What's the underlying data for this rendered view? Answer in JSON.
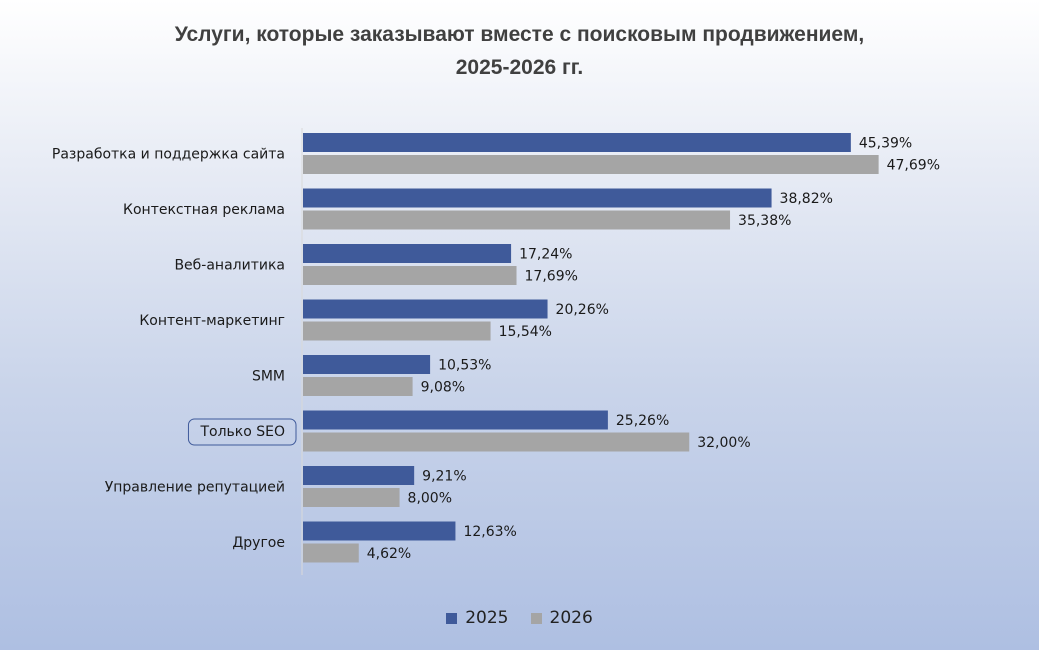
{
  "chart_data": {
    "type": "bar",
    "orientation": "horizontal",
    "title_line1": "Услуги, которые заказывают вместе с поисковым продвижением,",
    "title_line2": "2025-2026 гг.",
    "categories": [
      "Разработка и поддержка сайта",
      "Контекстная реклама",
      "Веб-аналитика",
      "Контент-маркетинг",
      "SMM",
      "Только SEO",
      "Управление репутацией",
      "Другое"
    ],
    "highlighted_category": "Только SEO",
    "series": [
      {
        "name": "2025",
        "color": "#3f5a9a",
        "values": [
          45.39,
          38.82,
          17.24,
          20.26,
          10.53,
          25.26,
          9.21,
          12.63
        ],
        "labels": [
          "45,39%",
          "38,82%",
          "17,24%",
          "20,26%",
          "10,53%",
          "25,26%",
          "9,21%",
          "12,63%"
        ]
      },
      {
        "name": "2026",
        "color": "#a5a5a5",
        "values": [
          47.69,
          35.38,
          17.69,
          15.54,
          9.08,
          32.0,
          8.0,
          4.62
        ],
        "labels": [
          "47,69%",
          "35,38%",
          "17,69%",
          "15,54%",
          "9,08%",
          "32,00%",
          "8,00%",
          "4,62%"
        ]
      }
    ],
    "xlim": [
      0,
      50
    ],
    "grid": false,
    "legend_position": "bottom"
  }
}
